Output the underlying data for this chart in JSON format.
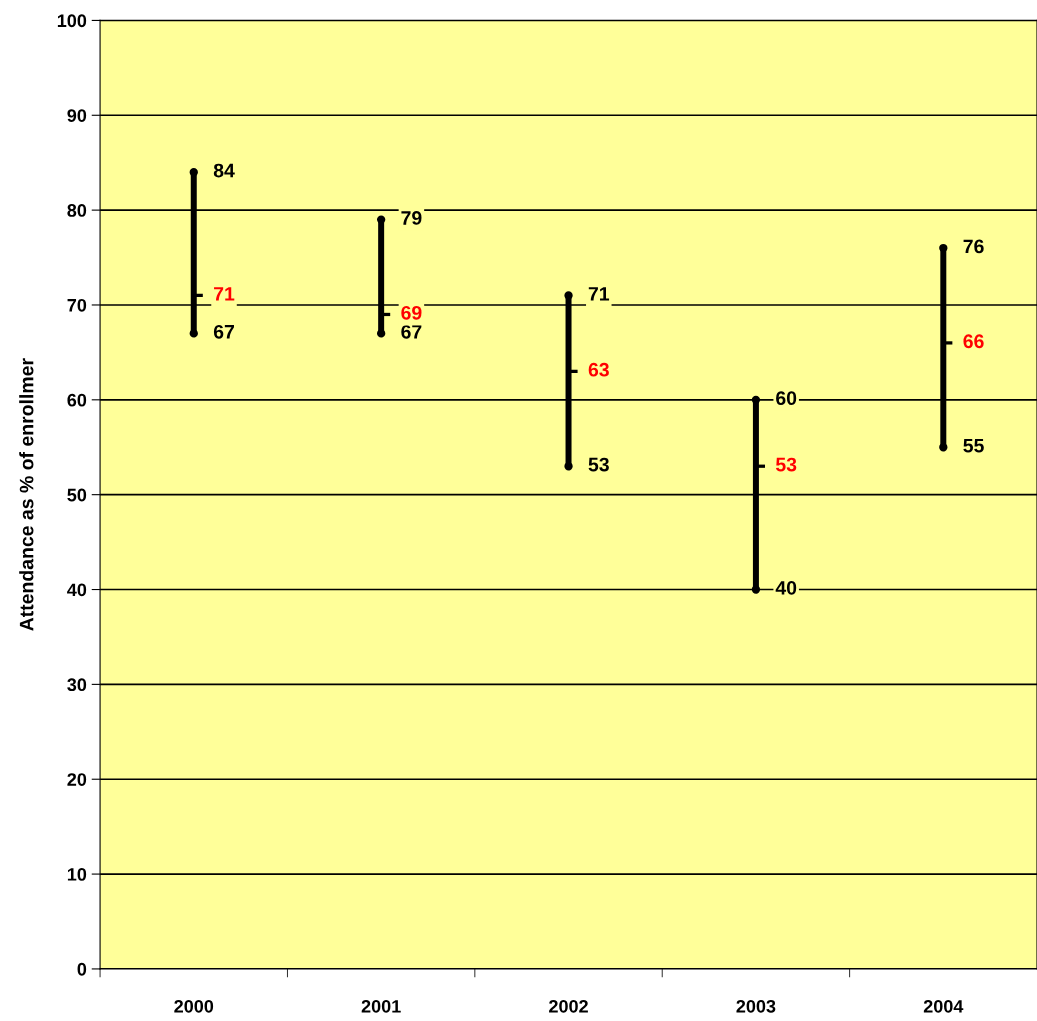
{
  "chart_data": {
    "type": "bar",
    "ylabel": "Attendance as % of enrollmer",
    "categories": [
      "2000",
      "2001",
      "2002",
      "2003",
      "2004"
    ],
    "series": [
      {
        "color": "#000000",
        "base": [
          67,
          67,
          53,
          40,
          55
        ],
        "values": [
          17,
          12,
          18,
          20,
          21
        ]
      },
      {
        "type": "scatter",
        "color": "#000000",
        "marker": "circle",
        "values": [
          84,
          79,
          71,
          60,
          76
        ],
        "data_labels": true
      },
      {
        "type": "scatter",
        "color": "#000000",
        "marker": "circle",
        "values": [
          67,
          67,
          53,
          40,
          55
        ],
        "data_labels": true
      },
      {
        "type": "scatter",
        "color": "#000000",
        "marker": "square",
        "values": [
          71,
          69,
          63,
          53,
          66
        ],
        "data_labels": true
      }
    ],
    "ylim": [
      0,
      100
    ],
    "yticks": [
      0,
      10,
      20,
      30,
      40,
      50,
      60,
      70,
      80,
      90,
      100
    ],
    "grid": "y"
  }
}
